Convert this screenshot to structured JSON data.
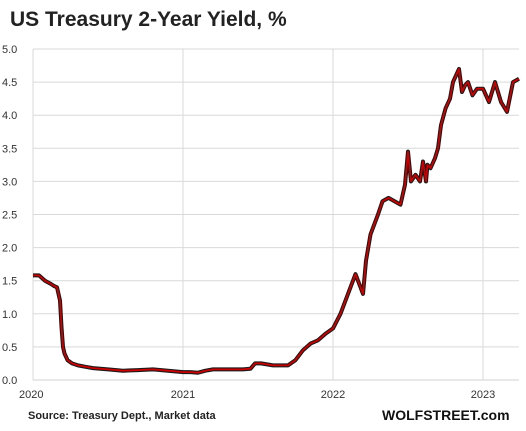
{
  "chart_data": {
    "type": "line",
    "title": "US Treasury 2-Year Yield, %",
    "xlabel": "",
    "ylabel": "",
    "ylim": [
      0,
      5.0
    ],
    "xlim": [
      2020.0,
      2023.24
    ],
    "y_ticks": [
      "0.0",
      "0.5",
      "1.0",
      "1.5",
      "2.0",
      "2.5",
      "3.0",
      "3.5",
      "4.0",
      "4.5",
      "5.0"
    ],
    "x_ticks": [
      {
        "value": 2020,
        "label": "2020"
      },
      {
        "value": 2021,
        "label": "2021"
      },
      {
        "value": 2022,
        "label": "2022"
      },
      {
        "value": 2023,
        "label": "2023"
      }
    ],
    "grid": true,
    "legend": "none",
    "colors": {
      "line": "#cc0000",
      "shadow": "#1a1a1a",
      "grid": "#d9d9d9"
    },
    "series": [
      {
        "x": [
          2020.0,
          2020.04,
          2020.08,
          2020.12,
          2020.14,
          2020.16,
          2020.18,
          2020.19,
          2020.2,
          2020.21,
          2020.23,
          2020.26,
          2020.3,
          2020.35,
          2020.4,
          2020.5,
          2020.6,
          2020.7,
          2020.8,
          2020.9,
          2021.0,
          2021.05,
          2021.1,
          2021.15,
          2021.2,
          2021.25,
          2021.3,
          2021.4,
          2021.45,
          2021.48,
          2021.52,
          2021.6,
          2021.65,
          2021.7,
          2021.75,
          2021.8,
          2021.85,
          2021.9,
          2021.95,
          2022.0,
          2022.05,
          2022.1,
          2022.15,
          2022.2,
          2022.22,
          2022.25,
          2022.3,
          2022.33,
          2022.37,
          2022.41,
          2022.45,
          2022.48,
          2022.5,
          2022.52,
          2022.55,
          2022.58,
          2022.6,
          2022.62,
          2022.63,
          2022.65,
          2022.68,
          2022.7,
          2022.72,
          2022.75,
          2022.78,
          2022.8,
          2022.82,
          2022.84,
          2022.86,
          2022.88,
          2022.9,
          2022.93,
          2022.96,
          2023.0,
          2023.04,
          2023.08,
          2023.12,
          2023.16,
          2023.2,
          2023.24
        ],
        "values": [
          1.58,
          1.58,
          1.5,
          1.45,
          1.42,
          1.4,
          1.2,
          0.8,
          0.5,
          0.4,
          0.3,
          0.25,
          0.22,
          0.2,
          0.18,
          0.16,
          0.14,
          0.15,
          0.16,
          0.14,
          0.12,
          0.12,
          0.11,
          0.14,
          0.16,
          0.16,
          0.16,
          0.16,
          0.17,
          0.25,
          0.25,
          0.22,
          0.22,
          0.22,
          0.3,
          0.45,
          0.55,
          0.6,
          0.7,
          0.78,
          1.0,
          1.3,
          1.6,
          1.3,
          1.8,
          2.2,
          2.5,
          2.7,
          2.75,
          2.7,
          2.65,
          2.95,
          3.45,
          3.0,
          3.1,
          3.0,
          3.3,
          3.0,
          3.25,
          3.2,
          3.35,
          3.5,
          3.85,
          4.1,
          4.25,
          4.5,
          4.6,
          4.7,
          4.35,
          4.45,
          4.5,
          4.3,
          4.4,
          4.4,
          4.2,
          4.5,
          4.2,
          4.05,
          4.5,
          4.55
        ]
      }
    ]
  },
  "footer": {
    "source": "Source: Treasury Dept., Market data",
    "brand": "WOLFSTREET.com"
  }
}
